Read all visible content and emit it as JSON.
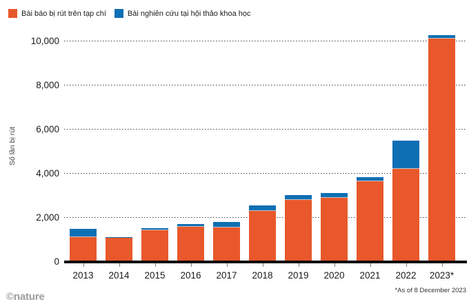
{
  "colors": {
    "journal": "#E8582B",
    "conference": "#0F6FB4",
    "grid": "#3f3f3f",
    "axis_line": "#0a0a0a",
    "tick": "#808080",
    "text": "#1a1a1a",
    "watermark": "#9c9c9c"
  },
  "legend": {
    "items": [
      {
        "label": "Bài báo bị rút trên tạp chí",
        "color_key": "journal"
      },
      {
        "label": "Bài nghiên cứu tại hội thảo khoa học",
        "color_key": "conference"
      }
    ]
  },
  "y_axis": {
    "title": "Số lần bị rút",
    "tick_labels": [
      "0",
      "2,000",
      "4,000",
      "6,000",
      "8,000",
      "10,000"
    ]
  },
  "footnote": "*As of 8 December 2023",
  "watermark": "©nature",
  "chart_data": {
    "type": "bar",
    "stacked": true,
    "categories": [
      "2013",
      "2014",
      "2015",
      "2016",
      "2017",
      "2018",
      "2019",
      "2020",
      "2021",
      "2022",
      "2023*"
    ],
    "series": [
      {
        "name": "Bài báo bị rút trên tạp chí",
        "color_key": "journal",
        "values": [
          1150,
          1120,
          1460,
          1620,
          1590,
          2330,
          2830,
          2950,
          3700,
          4250,
          10150
        ]
      },
      {
        "name": "Bài nghiên cứu tại hội thảo khoa học",
        "color_key": "conference",
        "values": [
          340,
          20,
          80,
          90,
          220,
          220,
          190,
          190,
          160,
          1250,
          130
        ]
      }
    ],
    "title": "",
    "xlabel": "",
    "ylabel": "Số lần bị rút",
    "ylim": [
      0,
      10500
    ],
    "yticks": [
      0,
      2000,
      4000,
      6000,
      8000,
      10000
    ],
    "grid": "dotted horizontal",
    "legend_position": "top-left",
    "footnote": "*As of 8 December 2023"
  }
}
